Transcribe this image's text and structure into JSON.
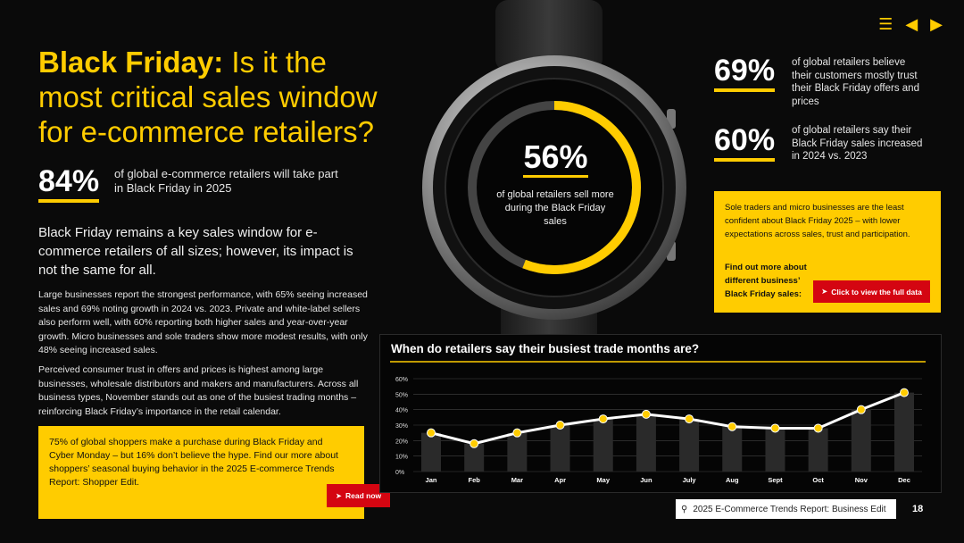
{
  "nav": {
    "menu_icon": "menu-icon",
    "prev_icon": "prev-arrow-icon",
    "next_icon": "next-arrow-icon"
  },
  "title": {
    "bold": "Black Friday:",
    "rest": " Is it the most critical sales window for e-commerce retailers?"
  },
  "stats": {
    "s84": {
      "value": "84%",
      "text": "of global e-commerce retailers will take part in Black Friday in 2025"
    },
    "s69": {
      "value": "69%",
      "text": "of global retailers believe their customers mostly trust their Black Friday offers and prices"
    },
    "s60": {
      "value": "60%",
      "text": "of global retailers say their Black Friday sales increased in 2024 vs. 2023"
    },
    "s56": {
      "value": "56%",
      "text": "of global retailers sell more during the Black Friday sales",
      "fraction": 0.56
    }
  },
  "lead": "Black Friday remains a key sales window for e-commerce retailers of all sizes; however, its impact is not the same for all.",
  "para1": "Large businesses report the strongest performance, with 65% seeing increased sales and 69% noting growth in 2024 vs. 2023. Private and white-label sellers also perform well, with 60% reporting both higher sales and year-over-year growth. Micro businesses and sole traders show more modest results, with only 48% seeing increased sales.",
  "para2": "Perceived consumer trust in offers and prices is highest among large businesses, wholesale distributors and makers and manufacturers. Across all business types, November stands out as one of the busiest trading months – reinforcing Black Friday’s importance in the retail calendar.",
  "box1": {
    "text": "75% of global shoppers make a purchase during Black Friday and Cyber Monday – but 16% don’t believe the hype. Find our more about shoppers’ seasonal buying behavior in the 2025 E-commerce Trends Report: Shopper Edit.",
    "button": "Read now"
  },
  "box2": {
    "text": "Sole traders and micro businesses are the least confident about Black Friday 2025 – with lower expectations across sales, trust and participation.",
    "find": "Find out more about different business’ Black Friday sales:",
    "button": "Click to view the full data"
  },
  "colors": {
    "accent": "#ffcc00",
    "red": "#d40511",
    "background": "#0a0a0a"
  },
  "chart_data": {
    "type": "line",
    "title": "When do retailers say their busiest trade months are?",
    "categories": [
      "Jan",
      "Feb",
      "Mar",
      "Apr",
      "May",
      "Jun",
      "July",
      "Aug",
      "Sept",
      "Oct",
      "Nov",
      "Dec"
    ],
    "values": [
      25,
      18,
      25,
      30,
      34,
      37,
      34,
      29,
      28,
      28,
      40,
      51
    ],
    "y_ticks": [
      "0%",
      "10%",
      "20%",
      "30%",
      "40%",
      "50%",
      "60%"
    ],
    "ylim": [
      0,
      60
    ],
    "grid": true
  },
  "footer": {
    "search": "2025 E-Commerce Trends Report: Business Edit",
    "page": "18"
  }
}
